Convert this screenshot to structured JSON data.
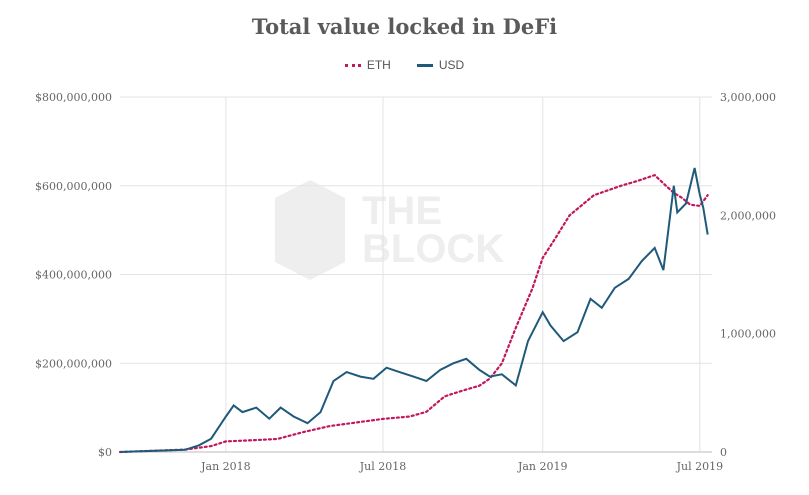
{
  "chart_data": {
    "type": "line",
    "title": "Total value locked in DeFi",
    "legend": [
      {
        "name": "ETH",
        "color": "#c2185b",
        "style": "dotted"
      },
      {
        "name": "USD",
        "color": "#1f5a7a",
        "style": "solid"
      }
    ],
    "x_ticks": [
      "Jan 2018",
      "Jul 2018",
      "Jan 2019",
      "Jul 2019"
    ],
    "y_left_ticks": [
      "$800,000,000",
      "$600,000,000",
      "$400,000,000",
      "$200,000,000",
      "$0"
    ],
    "y_right_ticks": [
      "3,000,000",
      "2,000,000",
      "1,000,000",
      "0"
    ],
    "ylim_left": [
      0,
      800000000
    ],
    "ylim_right": [
      0,
      3000000
    ],
    "watermark": [
      "THE",
      "BLOCK"
    ],
    "series": [
      {
        "name": "ETH",
        "axis": "right",
        "x": [
          "2017-09-01",
          "2017-11-15",
          "2017-12-15",
          "2018-01-01",
          "2018-02-01",
          "2018-03-01",
          "2018-04-01",
          "2018-05-01",
          "2018-06-01",
          "2018-07-01",
          "2018-08-01",
          "2018-08-20",
          "2018-09-10",
          "2018-10-01",
          "2018-10-20",
          "2018-11-01",
          "2018-11-15",
          "2018-12-01",
          "2018-12-20",
          "2019-01-01",
          "2019-01-15",
          "2019-02-01",
          "2019-03-01",
          "2019-04-01",
          "2019-04-20",
          "2019-05-10",
          "2019-05-20",
          "2019-06-01",
          "2019-06-10",
          "2019-06-20",
          "2019-07-01",
          "2019-07-10"
        ],
        "values": [
          0,
          20000,
          50000,
          90000,
          100000,
          110000,
          170000,
          220000,
          250000,
          280000,
          300000,
          340000,
          470000,
          520000,
          560000,
          620000,
          750000,
          1050000,
          1380000,
          1640000,
          1800000,
          2000000,
          2170000,
          2250000,
          2290000,
          2340000,
          2270000,
          2190000,
          2150000,
          2090000,
          2080000,
          2170000
        ]
      },
      {
        "name": "USD",
        "axis": "left",
        "x": [
          "2017-09-01",
          "2017-11-15",
          "2017-12-01",
          "2017-12-15",
          "2018-01-01",
          "2018-01-10",
          "2018-01-20",
          "2018-02-05",
          "2018-02-20",
          "2018-03-05",
          "2018-03-20",
          "2018-04-05",
          "2018-04-20",
          "2018-05-05",
          "2018-05-20",
          "2018-06-05",
          "2018-06-20",
          "2018-07-05",
          "2018-07-20",
          "2018-08-05",
          "2018-08-20",
          "2018-09-05",
          "2018-09-20",
          "2018-10-05",
          "2018-10-20",
          "2018-11-01",
          "2018-11-15",
          "2018-12-01",
          "2018-12-15",
          "2019-01-01",
          "2019-01-10",
          "2019-01-25",
          "2019-02-10",
          "2019-02-25",
          "2019-03-10",
          "2019-03-25",
          "2019-04-10",
          "2019-04-25",
          "2019-05-10",
          "2019-05-20",
          "2019-06-01",
          "2019-06-05",
          "2019-06-15",
          "2019-06-25",
          "2019-07-01",
          "2019-07-05",
          "2019-07-10"
        ],
        "values": [
          0,
          5000000,
          15000000,
          30000000,
          80000000,
          105000000,
          90000000,
          100000000,
          75000000,
          100000000,
          80000000,
          65000000,
          90000000,
          160000000,
          180000000,
          170000000,
          165000000,
          190000000,
          180000000,
          170000000,
          160000000,
          185000000,
          200000000,
          210000000,
          185000000,
          170000000,
          175000000,
          150000000,
          250000000,
          315000000,
          285000000,
          250000000,
          270000000,
          345000000,
          325000000,
          370000000,
          390000000,
          430000000,
          460000000,
          410000000,
          600000000,
          540000000,
          560000000,
          640000000,
          580000000,
          550000000,
          490000000
        ]
      }
    ]
  }
}
